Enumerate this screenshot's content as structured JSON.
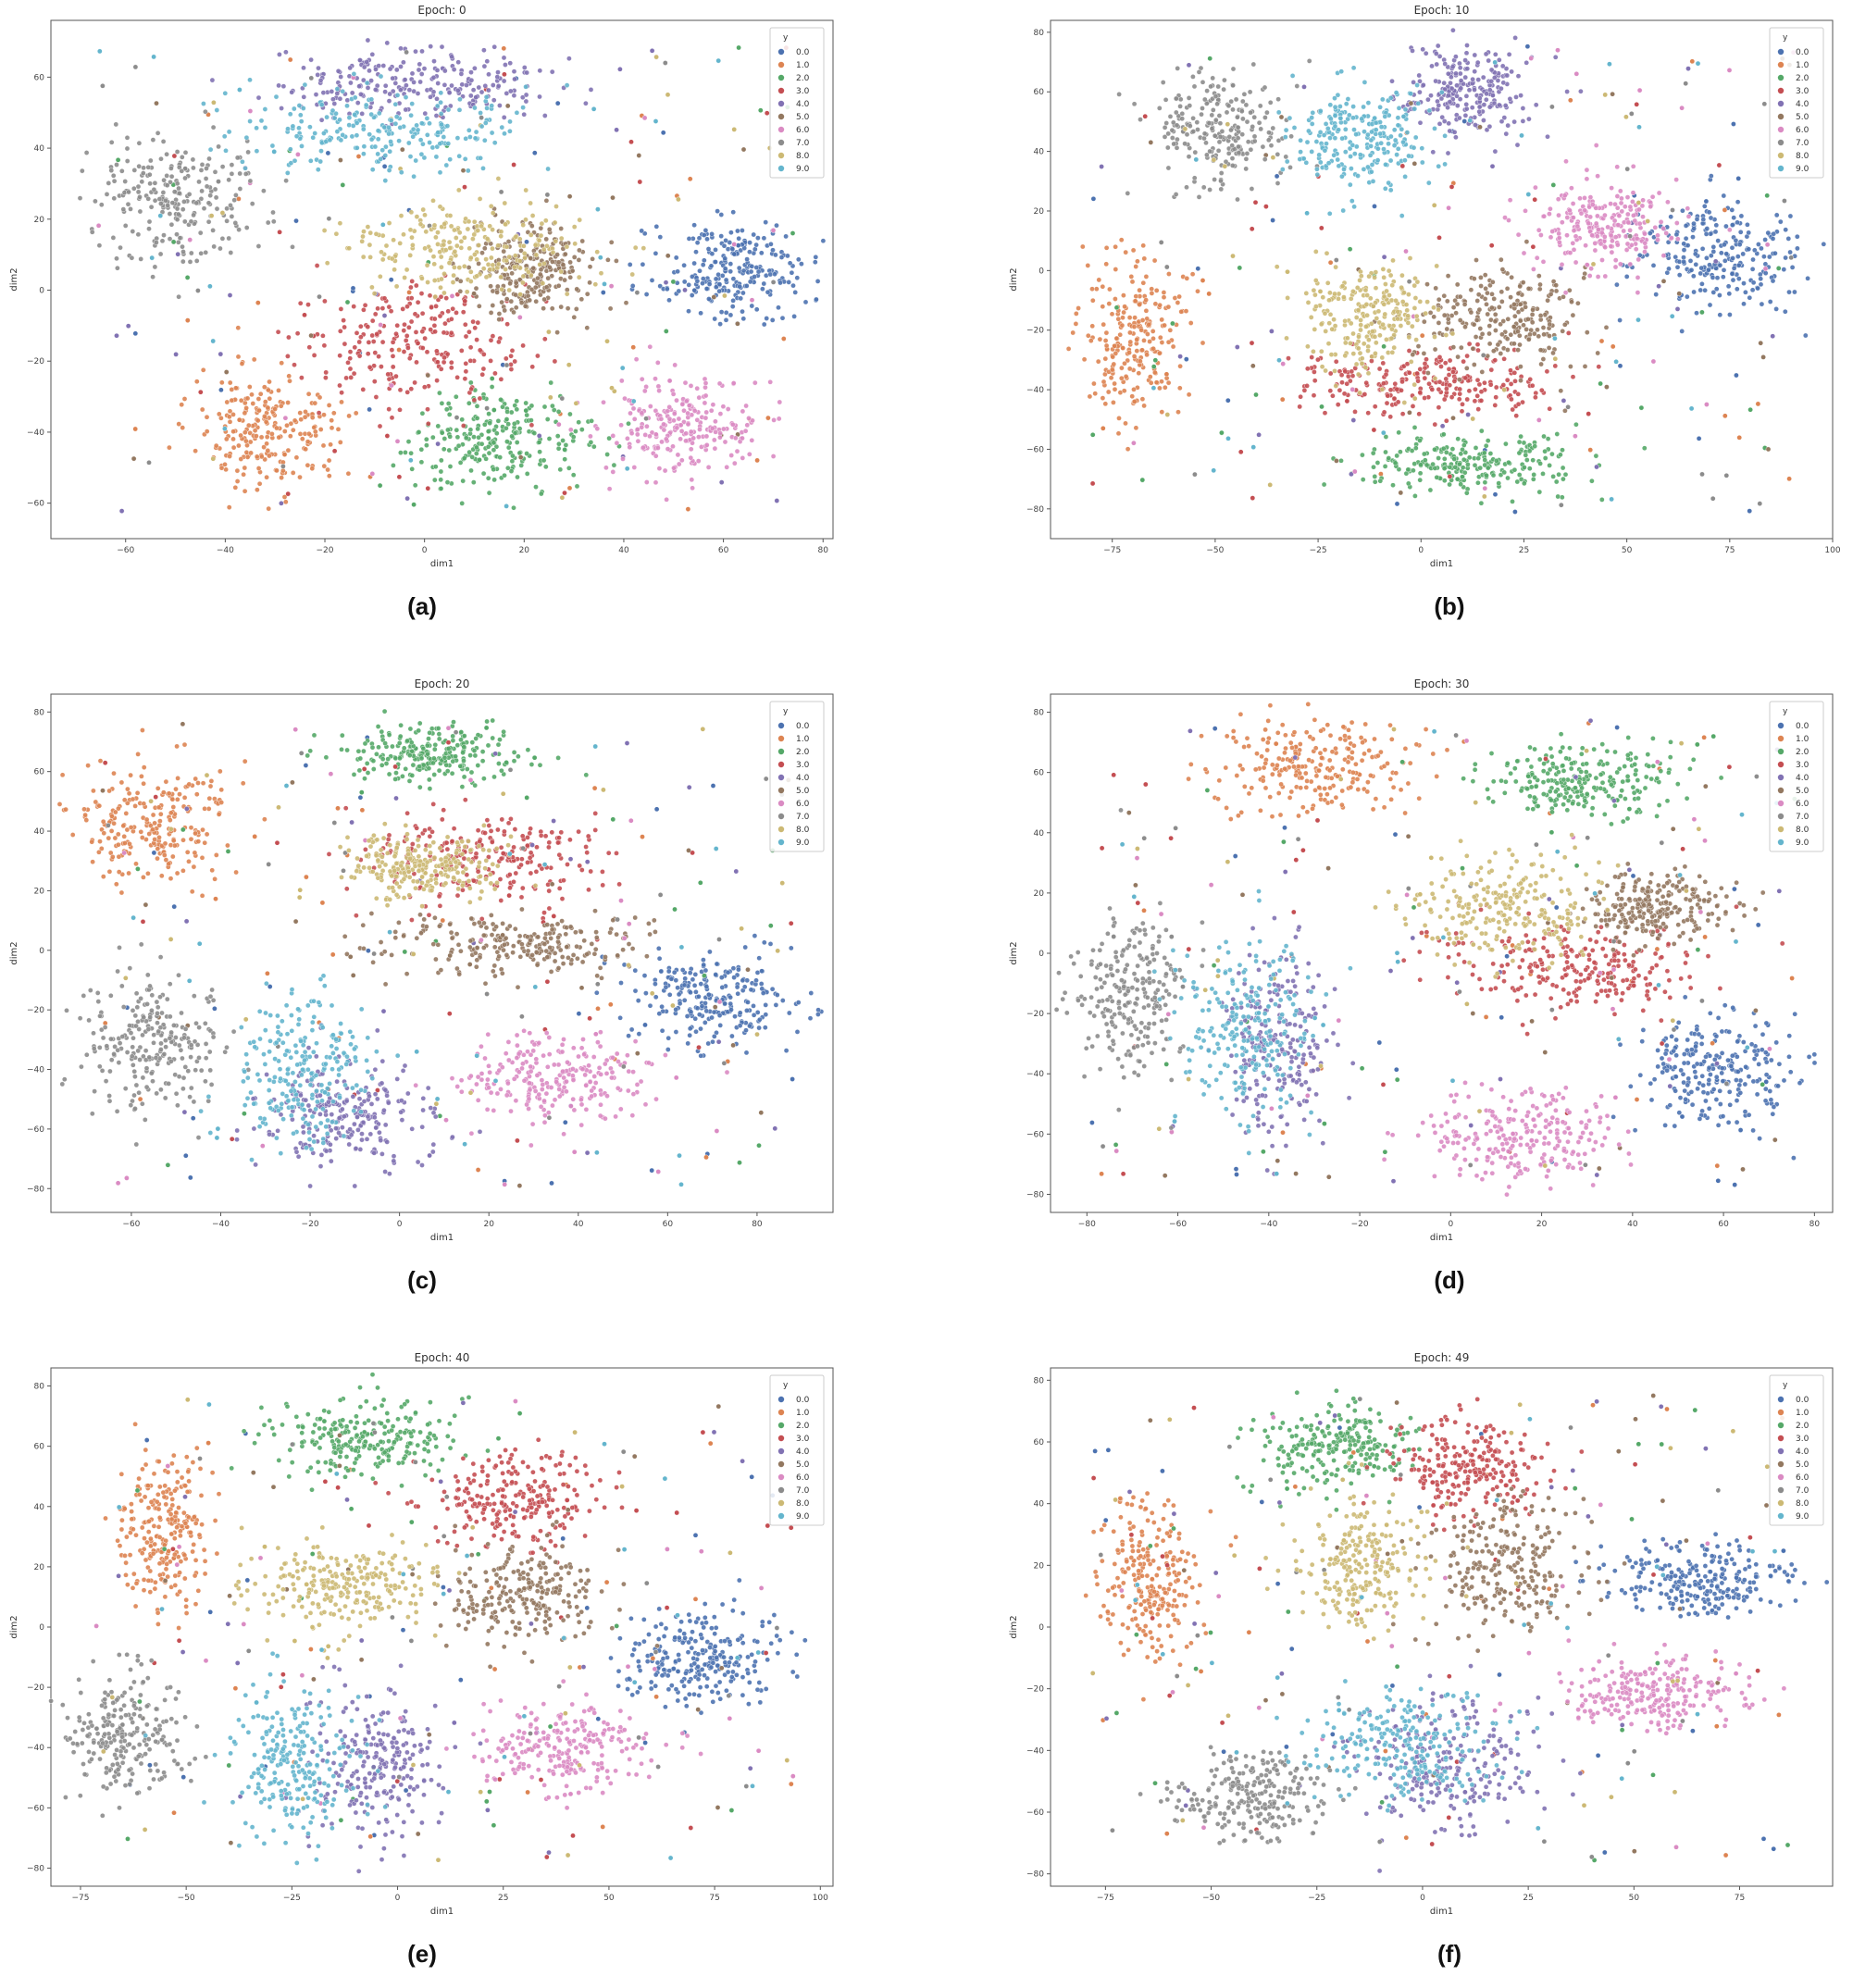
{
  "colors": [
    "#4c72b0",
    "#dd8452",
    "#55a868",
    "#c44e52",
    "#8172b3",
    "#937860",
    "#da8bc3",
    "#8c8c8c",
    "#ccb974",
    "#64b5cd"
  ],
  "legend": {
    "title": "y",
    "entries": [
      "0.0",
      "1.0",
      "2.0",
      "3.0",
      "4.0",
      "5.0",
      "6.0",
      "7.0",
      "8.0",
      "9.0"
    ]
  },
  "captions": [
    "(a)",
    "(b)",
    "(c)",
    "(d)",
    "(e)",
    "(f)"
  ],
  "chart_data": [
    {
      "type": "scatter",
      "title": "Epoch: 0",
      "xlabel": "dim1",
      "ylabel": "dim2",
      "xlim": [
        -75,
        82
      ],
      "ylim": [
        -70,
        76
      ],
      "xticks": [
        -60,
        -40,
        -20,
        0,
        20,
        40,
        60,
        80
      ],
      "yticks": [
        -60,
        -40,
        -20,
        0,
        20,
        40,
        60
      ],
      "legend_position": "top-right",
      "clusters": [
        {
          "label": "0.0",
          "cx": 62,
          "cy": 5,
          "sx": 10,
          "sy": 9
        },
        {
          "label": "1.0",
          "cx": -32,
          "cy": -40,
          "sx": 10,
          "sy": 12
        },
        {
          "label": "2.0",
          "cx": 15,
          "cy": -42,
          "sx": 12,
          "sy": 10
        },
        {
          "label": "3.0",
          "cx": -2,
          "cy": -15,
          "sx": 14,
          "sy": 11
        },
        {
          "label": "4.0",
          "cx": 0,
          "cy": 58,
          "sx": 18,
          "sy": 7
        },
        {
          "label": "5.0",
          "cx": 22,
          "cy": 5,
          "sx": 8,
          "sy": 8
        },
        {
          "label": "6.0",
          "cx": 52,
          "cy": -38,
          "sx": 10,
          "sy": 10
        },
        {
          "label": "7.0",
          "cx": -50,
          "cy": 25,
          "sx": 12,
          "sy": 12
        },
        {
          "label": "8.0",
          "cx": 10,
          "cy": 12,
          "sx": 16,
          "sy": 8
        },
        {
          "label": "9.0",
          "cx": -10,
          "cy": 45,
          "sx": 20,
          "sy": 8
        }
      ]
    },
    {
      "type": "scatter",
      "title": "Epoch: 10",
      "xlabel": "dim1",
      "ylabel": "dim2",
      "xlim": [
        -90,
        100
      ],
      "ylim": [
        -90,
        84
      ],
      "xticks": [
        -75,
        -50,
        -25,
        0,
        25,
        50,
        75,
        100
      ],
      "yticks": [
        -80,
        -60,
        -40,
        -20,
        0,
        20,
        40,
        60,
        80
      ],
      "legend_position": "top-right",
      "clusters": [
        {
          "label": "0.0",
          "cx": 72,
          "cy": 5,
          "sx": 13,
          "sy": 11
        },
        {
          "label": "1.0",
          "cx": -70,
          "cy": -22,
          "sx": 8,
          "sy": 18
        },
        {
          "label": "2.0",
          "cx": 10,
          "cy": -65,
          "sx": 18,
          "sy": 7
        },
        {
          "label": "3.0",
          "cx": 2,
          "cy": -38,
          "sx": 20,
          "sy": 7
        },
        {
          "label": "4.0",
          "cx": 10,
          "cy": 60,
          "sx": 10,
          "sy": 10
        },
        {
          "label": "5.0",
          "cx": 20,
          "cy": -15,
          "sx": 14,
          "sy": 12
        },
        {
          "label": "6.0",
          "cx": 45,
          "cy": 15,
          "sx": 12,
          "sy": 10
        },
        {
          "label": "7.0",
          "cx": -50,
          "cy": 48,
          "sx": 12,
          "sy": 12
        },
        {
          "label": "8.0",
          "cx": -12,
          "cy": -15,
          "sx": 10,
          "sy": 12
        },
        {
          "label": "9.0",
          "cx": -15,
          "cy": 45,
          "sx": 12,
          "sy": 12
        }
      ]
    },
    {
      "type": "scatter",
      "title": "Epoch: 20",
      "xlabel": "dim1",
      "ylabel": "dim2",
      "xlim": [
        -78,
        97
      ],
      "ylim": [
        -88,
        86
      ],
      "xticks": [
        -60,
        -40,
        -20,
        0,
        20,
        40,
        60,
        80
      ],
      "yticks": [
        -80,
        -60,
        -40,
        -20,
        0,
        20,
        40,
        60,
        80
      ],
      "legend_position": "top-right",
      "clusters": [
        {
          "label": "0.0",
          "cx": 70,
          "cy": -15,
          "sx": 12,
          "sy": 10
        },
        {
          "label": "1.0",
          "cx": -55,
          "cy": 42,
          "sx": 12,
          "sy": 14
        },
        {
          "label": "2.0",
          "cx": 8,
          "cy": 66,
          "sx": 15,
          "sy": 7
        },
        {
          "label": "3.0",
          "cx": 20,
          "cy": 30,
          "sx": 18,
          "sy": 10
        },
        {
          "label": "4.0",
          "cx": -12,
          "cy": -55,
          "sx": 12,
          "sy": 12
        },
        {
          "label": "5.0",
          "cx": 25,
          "cy": 2,
          "sx": 18,
          "sy": 7
        },
        {
          "label": "6.0",
          "cx": 35,
          "cy": -42,
          "sx": 14,
          "sy": 10
        },
        {
          "label": "7.0",
          "cx": -55,
          "cy": -30,
          "sx": 10,
          "sy": 16
        },
        {
          "label": "8.0",
          "cx": 5,
          "cy": 28,
          "sx": 12,
          "sy": 7
        },
        {
          "label": "9.0",
          "cx": -22,
          "cy": -40,
          "sx": 10,
          "sy": 18
        }
      ]
    },
    {
      "type": "scatter",
      "title": "Epoch: 30",
      "xlabel": "dim1",
      "ylabel": "dim2",
      "xlim": [
        -88,
        84
      ],
      "ylim": [
        -86,
        86
      ],
      "xticks": [
        -80,
        -60,
        -40,
        -20,
        0,
        20,
        40,
        60,
        80
      ],
      "yticks": [
        -80,
        -60,
        -40,
        -20,
        0,
        20,
        40,
        60,
        80
      ],
      "legend_position": "top-right",
      "clusters": [
        {
          "label": "0.0",
          "cx": 60,
          "cy": -40,
          "sx": 12,
          "sy": 12
        },
        {
          "label": "1.0",
          "cx": -30,
          "cy": 62,
          "sx": 16,
          "sy": 10
        },
        {
          "label": "2.0",
          "cx": 30,
          "cy": 58,
          "sx": 14,
          "sy": 8
        },
        {
          "label": "3.0",
          "cx": 28,
          "cy": -5,
          "sx": 20,
          "sy": 10
        },
        {
          "label": "4.0",
          "cx": -38,
          "cy": -30,
          "sx": 8,
          "sy": 20
        },
        {
          "label": "5.0",
          "cx": 45,
          "cy": 15,
          "sx": 10,
          "sy": 8
        },
        {
          "label": "6.0",
          "cx": 15,
          "cy": -60,
          "sx": 14,
          "sy": 10
        },
        {
          "label": "7.0",
          "cx": -70,
          "cy": -15,
          "sx": 8,
          "sy": 18
        },
        {
          "label": "8.0",
          "cx": 12,
          "cy": 15,
          "sx": 14,
          "sy": 12
        },
        {
          "label": "9.0",
          "cx": -45,
          "cy": -25,
          "sx": 10,
          "sy": 20
        }
      ]
    },
    {
      "type": "scatter",
      "title": "Epoch: 40",
      "xlabel": "dim1",
      "ylabel": "dim2",
      "xlim": [
        -82,
        103
      ],
      "ylim": [
        -86,
        86
      ],
      "xticks": [
        -75,
        -50,
        -25,
        0,
        25,
        50,
        75,
        100
      ],
      "yticks": [
        -80,
        -60,
        -40,
        -20,
        0,
        20,
        40,
        60,
        80
      ],
      "legend_position": "top-right",
      "clusters": [
        {
          "label": "0.0",
          "cx": 72,
          "cy": -10,
          "sx": 12,
          "sy": 10
        },
        {
          "label": "1.0",
          "cx": -55,
          "cy": 32,
          "sx": 7,
          "sy": 18
        },
        {
          "label": "2.0",
          "cx": -8,
          "cy": 63,
          "sx": 14,
          "sy": 8
        },
        {
          "label": "3.0",
          "cx": 28,
          "cy": 42,
          "sx": 14,
          "sy": 10
        },
        {
          "label": "4.0",
          "cx": -5,
          "cy": -45,
          "sx": 10,
          "sy": 16
        },
        {
          "label": "5.0",
          "cx": 30,
          "cy": 10,
          "sx": 12,
          "sy": 12
        },
        {
          "label": "6.0",
          "cx": 40,
          "cy": -40,
          "sx": 14,
          "sy": 10
        },
        {
          "label": "7.0",
          "cx": -65,
          "cy": -35,
          "sx": 9,
          "sy": 14
        },
        {
          "label": "8.0",
          "cx": -12,
          "cy": 15,
          "sx": 14,
          "sy": 10
        },
        {
          "label": "9.0",
          "cx": -25,
          "cy": -45,
          "sx": 10,
          "sy": 16
        }
      ]
    },
    {
      "type": "scatter",
      "title": "Epoch: 49",
      "xlabel": "dim1",
      "ylabel": "dim2",
      "xlim": [
        -88,
        97
      ],
      "ylim": [
        -84,
        84
      ],
      "xticks": [
        -75,
        -50,
        -25,
        0,
        25,
        50,
        75
      ],
      "yticks": [
        -80,
        -60,
        -40,
        -20,
        0,
        20,
        40,
        60,
        80
      ],
      "legend_position": "top-right",
      "clusters": [
        {
          "label": "0.0",
          "cx": 65,
          "cy": 15,
          "sx": 14,
          "sy": 8
        },
        {
          "label": "1.0",
          "cx": -65,
          "cy": 15,
          "sx": 8,
          "sy": 18
        },
        {
          "label": "2.0",
          "cx": -20,
          "cy": 58,
          "sx": 12,
          "sy": 10
        },
        {
          "label": "3.0",
          "cx": 12,
          "cy": 52,
          "sx": 12,
          "sy": 10
        },
        {
          "label": "4.0",
          "cx": 5,
          "cy": -45,
          "sx": 14,
          "sy": 14
        },
        {
          "label": "5.0",
          "cx": 20,
          "cy": 18,
          "sx": 12,
          "sy": 14
        },
        {
          "label": "6.0",
          "cx": 55,
          "cy": -22,
          "sx": 14,
          "sy": 8
        },
        {
          "label": "7.0",
          "cx": -40,
          "cy": -55,
          "sx": 12,
          "sy": 10
        },
        {
          "label": "8.0",
          "cx": -15,
          "cy": 20,
          "sx": 10,
          "sy": 14
        },
        {
          "label": "9.0",
          "cx": -5,
          "cy": -40,
          "sx": 16,
          "sy": 12
        }
      ]
    }
  ]
}
